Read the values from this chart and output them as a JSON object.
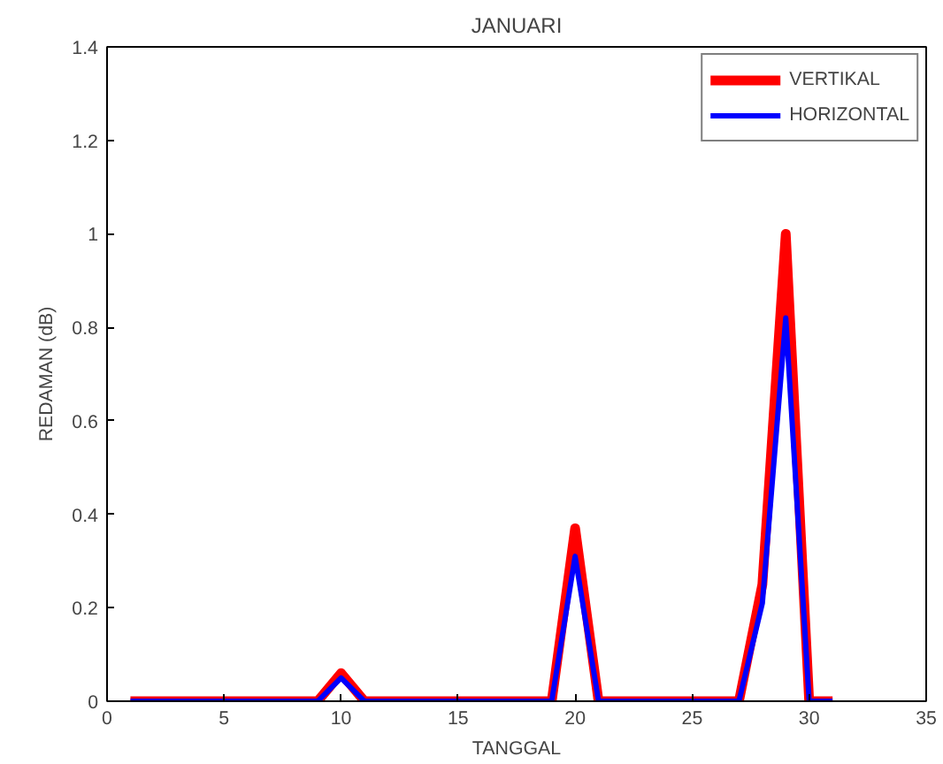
{
  "chart_data": {
    "type": "line",
    "title": "JANUARI",
    "xlabel": "TANGGAL",
    "ylabel": "REDAMAN (dB)",
    "x": [
      1,
      2,
      3,
      4,
      5,
      6,
      7,
      8,
      9,
      10,
      11,
      12,
      13,
      14,
      15,
      16,
      17,
      18,
      19,
      20,
      21,
      22,
      23,
      24,
      25,
      26,
      27,
      28,
      29,
      30,
      31
    ],
    "series": [
      {
        "name": "VERTIKAL",
        "color": "#ff0000",
        "values": [
          0,
          0,
          0,
          0,
          0,
          0,
          0,
          0,
          0,
          0.06,
          0,
          0,
          0,
          0,
          0,
          0,
          0,
          0,
          0,
          0.37,
          0,
          0,
          0,
          0,
          0,
          0,
          0,
          0.25,
          1.0,
          0,
          0
        ]
      },
      {
        "name": "HORIZONTAL",
        "color": "#0000ff",
        "values": [
          0,
          0,
          0,
          0,
          0,
          0,
          0,
          0,
          0,
          0.05,
          0,
          0,
          0,
          0,
          0,
          0,
          0,
          0,
          0,
          0.31,
          0,
          0,
          0,
          0,
          0,
          0,
          0,
          0.21,
          0.82,
          0,
          0
        ]
      }
    ],
    "xlim": [
      0,
      35
    ],
    "xticks": [
      0,
      5,
      10,
      15,
      20,
      25,
      30,
      35
    ],
    "ylim": [
      0,
      1.4
    ],
    "yticks": [
      0,
      0.2,
      0.4,
      0.6,
      0.8,
      1,
      1.2,
      1.4
    ],
    "grid": false,
    "legend": "top right",
    "line_style": "solid",
    "marker": "none"
  }
}
